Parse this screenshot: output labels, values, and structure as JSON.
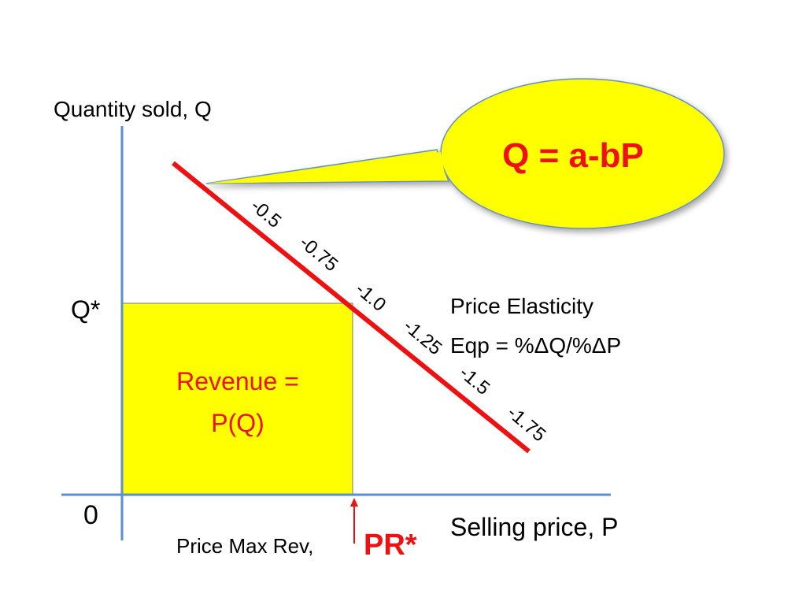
{
  "y_axis_label": "Quantity sold, Q",
  "x_axis_label": "Selling price, P",
  "origin_label": "0",
  "q_star_label": "Q*",
  "revenue_label": [
    "Revenue =",
    "P(Q)"
  ],
  "callout_formula": "Q = a-bP",
  "elasticity_labels": [
    "-0.5",
    "-0.75",
    "-1.0",
    "-1.25",
    "-1.5",
    "-1.75"
  ],
  "elasticity_definition": [
    "Price Elasticity",
    "Eqp = %ΔQ/%ΔP"
  ],
  "price_max_rev_label": "Price Max Rev,",
  "price_max_rev_symbol": "PR*"
}
